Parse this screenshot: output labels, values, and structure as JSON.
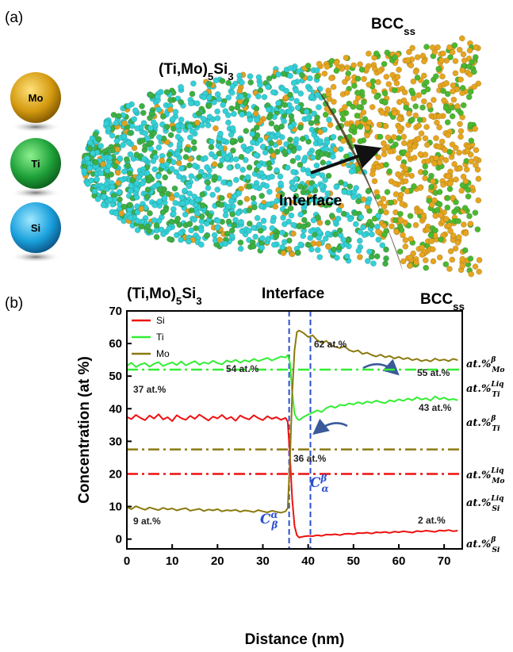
{
  "panel_a": {
    "label": "(a)",
    "phase_left": {
      "base": "(Ti,Mo)",
      "sub1": "5",
      "mid": "Si",
      "sub2": "3"
    },
    "phase_right": {
      "base": "BCC",
      "sub": "ss"
    },
    "interface": "Interface",
    "legend": [
      "Mo",
      "Ti",
      "Si"
    ]
  },
  "chart_data": {
    "type": "line",
    "panel_label": "(b)",
    "header_left": {
      "base": "(Ti,Mo)",
      "sub1": "5",
      "mid": "Si",
      "sub2": "3"
    },
    "header_mid": "Interface",
    "header_right": {
      "base": "BCC",
      "sub": "ss"
    },
    "xlabel": "Distance (nm)",
    "ylabel": "Concentration (at %)",
    "xlim": [
      0,
      74
    ],
    "ylim": [
      -3,
      70
    ],
    "xticks": [
      0,
      10,
      20,
      30,
      40,
      50,
      60,
      70
    ],
    "yticks": [
      0,
      10,
      20,
      30,
      40,
      50,
      60,
      70
    ],
    "x": [
      0,
      1,
      2,
      3,
      4,
      5,
      6,
      7,
      8,
      9,
      10,
      11,
      12,
      13,
      14,
      15,
      16,
      17,
      18,
      19,
      20,
      21,
      22,
      23,
      24,
      25,
      26,
      27,
      28,
      29,
      30,
      31,
      32,
      33,
      34,
      35,
      35.5,
      36,
      36.5,
      37,
      37.5,
      38,
      39,
      40,
      41,
      42,
      43,
      44,
      45,
      46,
      47,
      48,
      49,
      50,
      51,
      52,
      53,
      54,
      55,
      56,
      57,
      58,
      59,
      60,
      61,
      62,
      63,
      64,
      65,
      66,
      67,
      68,
      69,
      70,
      71,
      72,
      73
    ],
    "series": [
      {
        "name": "Si",
        "color": "#ee1111",
        "values": [
          37.5,
          36.8,
          38.1,
          37.2,
          36.5,
          37.9,
          37.0,
          38.3,
          36.7,
          37.4,
          36.2,
          38.0,
          37.1,
          36.6,
          37.8,
          36.9,
          38.2,
          37.3,
          36.4,
          37.6,
          37.0,
          38.1,
          36.8,
          37.5,
          36.3,
          37.9,
          37.2,
          36.7,
          38.0,
          37.1,
          36.5,
          37.7,
          36.9,
          37.4,
          36.6,
          37.2,
          36.0,
          25.0,
          12.0,
          4.0,
          1.2,
          0.5,
          0.8,
          1.0,
          0.9,
          1.2,
          1.0,
          1.4,
          1.3,
          1.5,
          1.2,
          1.6,
          1.7,
          1.5,
          1.9,
          1.8,
          2.0,
          1.7,
          2.1,
          2.0,
          2.2,
          1.9,
          2.3,
          2.1,
          2.4,
          2.2,
          2.0,
          2.5,
          2.3,
          2.6,
          2.4,
          2.2,
          2.7,
          2.5,
          2.8,
          2.4,
          2.6
        ]
      },
      {
        "name": "Ti",
        "color": "#33ee33",
        "values": [
          53.2,
          54.1,
          52.8,
          53.6,
          54.0,
          52.9,
          53.8,
          54.3,
          53.1,
          53.7,
          54.2,
          53.4,
          54.5,
          53.3,
          54.0,
          54.6,
          53.5,
          54.2,
          53.8,
          54.7,
          54.0,
          53.6,
          54.8,
          54.3,
          55.0,
          54.1,
          54.9,
          54.4,
          55.3,
          54.6,
          55.1,
          55.6,
          54.8,
          55.4,
          56.0,
          55.7,
          56.5,
          54.0,
          45.0,
          38.5,
          37.0,
          36.5,
          37.5,
          38.2,
          38.8,
          39.5,
          39.0,
          40.2,
          40.8,
          40.3,
          41.2,
          41.0,
          41.6,
          41.3,
          42.0,
          41.5,
          42.2,
          41.8,
          42.5,
          42.0,
          41.7,
          42.6,
          42.2,
          42.9,
          42.4,
          43.1,
          42.6,
          43.5,
          42.8,
          43.2,
          42.5,
          43.8,
          42.9,
          43.4,
          42.7,
          43.0,
          42.6
        ]
      },
      {
        "name": "Mo",
        "color": "#8b7a10",
        "values": [
          9.8,
          9.2,
          10.1,
          9.5,
          9.0,
          9.7,
          9.3,
          8.9,
          9.6,
          9.1,
          9.4,
          8.8,
          9.2,
          9.5,
          8.7,
          9.0,
          9.3,
          8.6,
          9.1,
          8.8,
          9.2,
          8.5,
          8.9,
          8.7,
          9.0,
          8.4,
          8.8,
          8.6,
          8.3,
          8.9,
          8.5,
          8.2,
          8.7,
          8.4,
          8.1,
          8.5,
          9.5,
          25.0,
          45.0,
          58.0,
          63.5,
          64.0,
          63.2,
          62.0,
          62.5,
          61.0,
          60.2,
          60.8,
          59.5,
          59.0,
          58.6,
          59.2,
          58.0,
          57.5,
          57.9,
          56.8,
          57.2,
          56.5,
          56.0,
          56.6,
          55.8,
          56.2,
          55.4,
          55.9,
          55.2,
          55.6,
          54.9,
          55.3,
          54.6,
          55.0,
          54.5,
          55.4,
          54.8,
          55.1,
          54.6,
          55.3,
          54.9
        ]
      }
    ],
    "reference_lines": [
      {
        "y": 52,
        "color": "#33ee33"
      },
      {
        "y": 27.5,
        "color": "#8b7a10"
      },
      {
        "y": 20,
        "color": "#ee1111"
      }
    ],
    "interfaces": [
      {
        "x": 35.8,
        "label": {
          "text": "C",
          "sup": "α",
          "sub": "β"
        }
      },
      {
        "x": 40.5,
        "label": {
          "text": "C",
          "sup": "β",
          "sub": "α"
        }
      }
    ],
    "interface_color": "#2a4fd0",
    "annotations": [
      "37 at.%",
      "54 at.%",
      "62 at.%",
      "55 at.%",
      "43 at.%",
      "36 at.%",
      "9 at.%",
      "2 at.%"
    ],
    "right_labels": [
      {
        "text": "at.%",
        "sup": "β",
        "sub": "Mo"
      },
      {
        "text": "at.%",
        "sup": "Liq",
        "sub": "Ti"
      },
      {
        "text": "at.%",
        "sup": "β",
        "sub": "Ti"
      },
      {
        "text": "at.%",
        "sup": "Liq",
        "sub": "Mo"
      },
      {
        "text": "at.%",
        "sup": "Liq",
        "sub": "Si"
      },
      {
        "text": "at.%",
        "sup": "β",
        "sub": "Si"
      }
    ]
  }
}
